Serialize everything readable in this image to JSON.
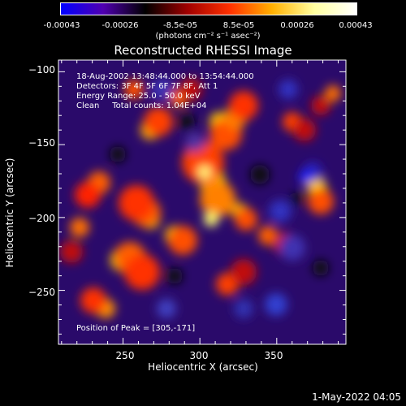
{
  "colorbar": {
    "ticks": [
      "-0.00043",
      "-0.00026",
      "-8.5e-05",
      "8.5e-05",
      "0.00026",
      "0.00043"
    ],
    "tick_values": [
      -0.00043,
      -0.00026,
      -8.5e-05,
      8.5e-05,
      0.00026,
      0.00043
    ],
    "range": [
      -0.00043,
      0.00043
    ],
    "units": "(photons cm⁻² s⁻¹ asec⁻²)",
    "colors": [
      "#0000ff",
      "#5000b0",
      "#000000",
      "#a00000",
      "#ff3000",
      "#ffb000",
      "#ffffa0",
      "#ffffff"
    ]
  },
  "plot": {
    "title": "Reconstructed RHESSI Image",
    "xlabel": "Heliocentric X (arcsec)",
    "ylabel": "Heliocentric Y (arcsec)",
    "xlim": [
      208,
      395
    ],
    "ylim": [
      -287,
      -92
    ],
    "xticks": [
      250,
      300,
      350
    ],
    "yticks": [
      -100,
      -150,
      -200,
      -250
    ],
    "xtick_labels": [
      "250",
      "300",
      "350"
    ],
    "ytick_labels": [
      "−100",
      "−150",
      "−200",
      "−250"
    ]
  },
  "info": {
    "line1": "18-Aug-2002 13:48:44.000 to 13:54:44.000",
    "line2": "Detectors: 3F 4F 5F 6F 7F 8F, Att 1",
    "line3": "Energy Range: 25.0 - 50.0 keV",
    "line4": "Clean     Total counts: 1.04E+04",
    "peak": "Position of Peak = [305,-171]"
  },
  "peak_position": [
    305,
    -171
  ],
  "timestamp": "1-May-2022 04:05"
}
